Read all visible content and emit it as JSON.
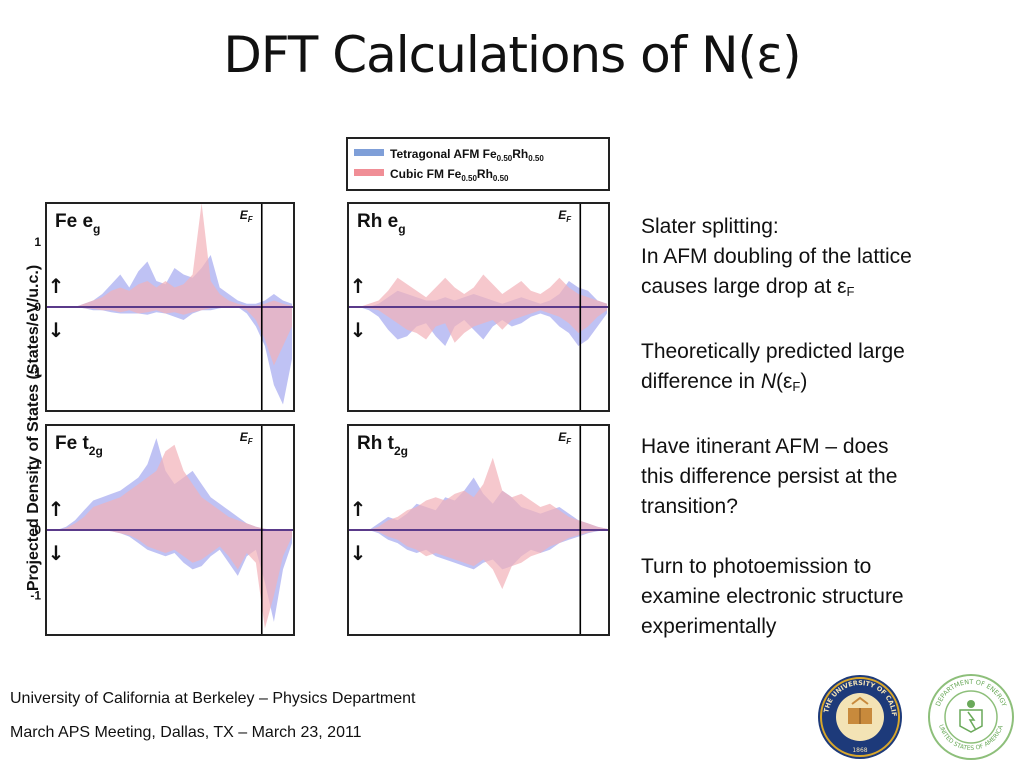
{
  "title": "DFT Calculations of N(ε)",
  "colors": {
    "afm_blue": "#a9aef0",
    "fm_red": "#f2b0b8",
    "legend_blue": "#7f9fd8",
    "legend_red": "#f08e96",
    "fermi_line": "#000000",
    "zero_line": "#5a3a8a"
  },
  "chart_data": {
    "type": "area",
    "ylabel": "Projected Density of States (States/eV/u.c.)",
    "ylim": [
      -1.6,
      1.6
    ],
    "yticks": [
      "1",
      "0",
      "-1"
    ],
    "fermi_label": "E",
    "fermi_label_sub": "F",
    "spin_up_glyph": "↑",
    "spin_down_glyph": "↓",
    "legend": {
      "entries": [
        {
          "text": "Tetragonal AFM Fe",
          "sub1": "0.50",
          "mid": "Rh",
          "sub2": "0.50"
        },
        {
          "text": "Cubic FM Fe",
          "sub1": "0.50",
          "mid": "Rh",
          "sub2": "0.50"
        }
      ]
    },
    "panels": [
      {
        "label": "Fe e",
        "label_sub": "g",
        "afm": [
          0,
          0,
          0,
          0,
          0.05,
          0.1,
          0.2,
          0.35,
          0.5,
          0.3,
          0.55,
          0.7,
          0.4,
          0.35,
          0.6,
          0.5,
          0.45,
          0.6,
          0.8,
          0.3,
          0.2,
          0.1,
          0.05,
          0.05,
          0.1,
          0.2,
          0.1,
          0.05
        ],
        "afm_dn": [
          0,
          0,
          0,
          0,
          -0.02,
          -0.05,
          -0.05,
          -0.08,
          -0.1,
          -0.1,
          -0.1,
          -0.12,
          -0.08,
          -0.1,
          -0.15,
          -0.2,
          -0.1,
          -0.05,
          -0.05,
          -0.02,
          0,
          0,
          -0.1,
          -0.3,
          -0.6,
          -1.2,
          -1.5,
          -0.8
        ],
        "fm": [
          0,
          0,
          0,
          0,
          0.05,
          0.1,
          0.15,
          0.25,
          0.3,
          0.25,
          0.35,
          0.4,
          0.3,
          0.4,
          0.3,
          0.35,
          0.5,
          1.6,
          0.4,
          0.2,
          0.1,
          0.05,
          0.02,
          0.02,
          0.05,
          0.1,
          0.05,
          0.02
        ],
        "fm_dn": [
          0,
          0,
          0,
          0,
          -0.02,
          -0.03,
          -0.05,
          -0.05,
          -0.08,
          -0.05,
          -0.1,
          -0.08,
          -0.05,
          -0.1,
          -0.08,
          -0.12,
          -0.08,
          -0.05,
          -0.02,
          0,
          0,
          0,
          -0.05,
          -0.2,
          -0.5,
          -0.9,
          -0.6,
          -0.3
        ]
      },
      {
        "label": "Rh e",
        "label_sub": "g",
        "afm": [
          0,
          0,
          0,
          0.05,
          0.15,
          0.25,
          0.2,
          0.15,
          0.1,
          0.1,
          0.15,
          0.1,
          0.15,
          0.2,
          0.15,
          0.1,
          0.05,
          0.1,
          0.15,
          0.1,
          0.05,
          0.1,
          0.2,
          0.4,
          0.3,
          0.25,
          0.1,
          0.05
        ],
        "afm_dn": [
          0,
          0,
          -0.05,
          -0.15,
          -0.35,
          -0.5,
          -0.45,
          -0.3,
          -0.25,
          -0.45,
          -0.6,
          -0.3,
          -0.2,
          -0.35,
          -0.5,
          -0.3,
          -0.2,
          -0.3,
          -0.25,
          -0.15,
          -0.1,
          -0.15,
          -0.3,
          -0.4,
          -0.6,
          -0.5,
          -0.3,
          -0.1
        ],
        "fm": [
          0,
          0,
          0.05,
          0.1,
          0.25,
          0.45,
          0.35,
          0.25,
          0.15,
          0.3,
          0.45,
          0.3,
          0.2,
          0.3,
          0.5,
          0.35,
          0.2,
          0.3,
          0.4,
          0.25,
          0.2,
          0.3,
          0.45,
          0.3,
          0.2,
          0.15,
          0.1,
          0.05
        ],
        "fm_dn": [
          0,
          0,
          -0.02,
          -0.05,
          -0.15,
          -0.25,
          -0.35,
          -0.4,
          -0.5,
          -0.3,
          -0.25,
          -0.55,
          -0.4,
          -0.3,
          -0.25,
          -0.2,
          -0.35,
          -0.2,
          -0.15,
          -0.1,
          -0.05,
          -0.1,
          -0.15,
          -0.25,
          -0.4,
          -0.3,
          -0.15,
          -0.05
        ]
      },
      {
        "label": "Fe t",
        "label_sub": "2g",
        "afm": [
          0,
          0,
          0.05,
          0.15,
          0.3,
          0.45,
          0.5,
          0.55,
          0.6,
          0.7,
          0.8,
          1.0,
          1.4,
          0.9,
          0.7,
          0.8,
          0.9,
          0.7,
          0.5,
          0.4,
          0.3,
          0.2,
          0.1,
          0.05,
          0.02,
          0,
          0,
          0
        ],
        "afm_dn": [
          0,
          0,
          0,
          0,
          0,
          0,
          0,
          -0.02,
          -0.05,
          -0.1,
          -0.2,
          -0.3,
          -0.35,
          -0.4,
          -0.35,
          -0.5,
          -0.6,
          -0.55,
          -0.4,
          -0.3,
          -0.5,
          -0.7,
          -0.4,
          -0.3,
          -0.8,
          -1.4,
          -0.6,
          -0.2
        ],
        "fm": [
          0,
          0,
          0.03,
          0.1,
          0.2,
          0.35,
          0.4,
          0.45,
          0.5,
          0.6,
          0.7,
          0.8,
          0.9,
          1.2,
          1.3,
          0.9,
          0.7,
          0.5,
          0.4,
          0.3,
          0.2,
          0.15,
          0.1,
          0.05,
          0.02,
          0,
          0,
          0
        ],
        "fm_dn": [
          0,
          0,
          0,
          0,
          0,
          0,
          0,
          -0.02,
          -0.05,
          -0.08,
          -0.15,
          -0.25,
          -0.3,
          -0.35,
          -0.3,
          -0.4,
          -0.5,
          -0.45,
          -0.35,
          -0.25,
          -0.4,
          -0.6,
          -0.35,
          -0.5,
          -1.5,
          -1.0,
          -0.4,
          -0.1
        ]
      },
      {
        "label": "Rh t",
        "label_sub": "2g",
        "afm": [
          0,
          0,
          0,
          0.1,
          0.2,
          0.15,
          0.25,
          0.4,
          0.35,
          0.3,
          0.5,
          0.45,
          0.6,
          0.8,
          0.55,
          0.4,
          0.6,
          0.5,
          0.35,
          0.3,
          0.25,
          0.3,
          0.35,
          0.25,
          0.15,
          0.1,
          0.05,
          0.02
        ],
        "afm_dn": [
          0,
          0,
          0,
          -0.05,
          -0.15,
          -0.2,
          -0.3,
          -0.35,
          -0.3,
          -0.4,
          -0.45,
          -0.5,
          -0.55,
          -0.6,
          -0.5,
          -0.45,
          -0.6,
          -0.55,
          -0.4,
          -0.3,
          -0.35,
          -0.3,
          -0.2,
          -0.15,
          -0.1,
          -0.05,
          -0.02,
          0
        ],
        "fm": [
          0,
          0,
          0,
          0.05,
          0.15,
          0.2,
          0.3,
          0.35,
          0.45,
          0.5,
          0.45,
          0.55,
          0.6,
          0.5,
          0.7,
          1.1,
          0.6,
          0.5,
          0.55,
          0.45,
          0.35,
          0.4,
          0.3,
          0.2,
          0.15,
          0.1,
          0.05,
          0.02
        ],
        "fm_dn": [
          0,
          0,
          0,
          -0.03,
          -0.1,
          -0.15,
          -0.25,
          -0.3,
          -0.4,
          -0.35,
          -0.4,
          -0.45,
          -0.5,
          -0.55,
          -0.45,
          -0.6,
          -0.9,
          -0.55,
          -0.5,
          -0.4,
          -0.35,
          -0.25,
          -0.2,
          -0.12,
          -0.08,
          -0.04,
          -0.01,
          0
        ]
      }
    ]
  },
  "notes": [
    {
      "lines": [
        "Slater splitting:",
        "In AFM doubling of the lattice",
        "causes large drop at ε"
      ],
      "last_sub": "F"
    },
    {
      "lines": [
        "Theoretically predicted large",
        "difference in "
      ],
      "italic": "N",
      "tail": "(ε",
      "tail_sub": "F",
      "tail_end": ")"
    },
    {
      "lines": [
        "Have itinerant AFM – does",
        "this difference persist at the",
        "transition?"
      ]
    },
    {
      "lines": [
        "Turn to photoemission to",
        "examine electronic structure",
        "experimentally"
      ]
    }
  ],
  "footer": {
    "line1": "University of California at Berkeley – Physics Department",
    "line2": "March APS Meeting, Dallas, TX – March 23, 2011"
  },
  "seals": {
    "uc_text": "THE UNIVERSITY OF CALIFORNIA",
    "uc_year": "1868",
    "doe_text": "DEPARTMENT OF ENERGY",
    "doe_text2": "UNITED STATES OF AMERICA"
  }
}
